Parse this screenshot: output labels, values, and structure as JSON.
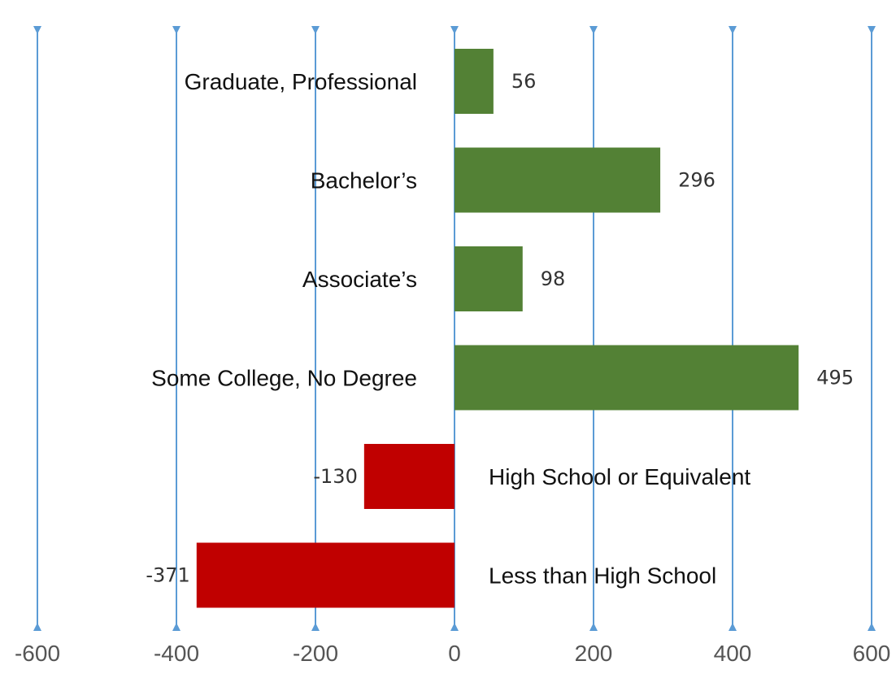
{
  "chart_data": {
    "type": "bar",
    "orientation": "horizontal",
    "title": "",
    "xlabel": "",
    "ylabel": "",
    "categories": [
      "Graduate, Professional",
      "Bachelor’s",
      "Associate’s",
      "Some College, No Degree",
      "High School or Equivalent",
      "Less than High School"
    ],
    "values": [
      56,
      296,
      98,
      495,
      -130,
      -371
    ],
    "value_labels": [
      "56",
      "296",
      "98",
      "495",
      "-130",
      "-371"
    ],
    "xlim": [
      -600,
      600
    ],
    "xticks": [
      -600,
      -400,
      -200,
      0,
      200,
      400,
      600
    ],
    "xtick_labels": [
      "-600",
      "-400",
      "-200",
      "0",
      "200",
      "400",
      "600"
    ],
    "grid": "vertical",
    "legend": "none",
    "colors": {
      "positive": "#538135",
      "negative": "#C00000",
      "gridline": "#5B9BD5",
      "axis_text": "#555555"
    }
  }
}
